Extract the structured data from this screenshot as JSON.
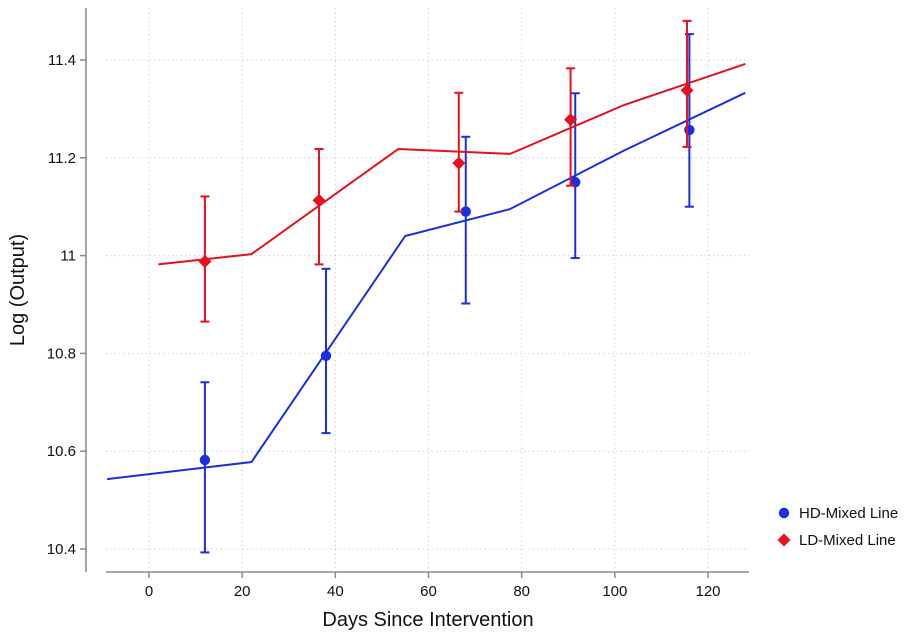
{
  "colors": {
    "HD": "#1a2fe0",
    "LD": "#e8101e",
    "grid": "#c8c8c8",
    "axis": "#8a8a8a"
  },
  "chart_data": {
    "type": "line",
    "title": "",
    "xlabel": "Days Since Intervention",
    "ylabel": "Log (Output)",
    "xlim": [
      -9,
      129
    ],
    "ylim": [
      10.4,
      11.4
    ],
    "xticks": [
      0,
      20,
      40,
      60,
      80,
      100,
      120
    ],
    "yticks": [
      10.4,
      10.6,
      10.8,
      11.0,
      11.2,
      11.4
    ],
    "xtick_labels": [
      "0",
      "20",
      "40",
      "60",
      "80",
      "100",
      "120"
    ],
    "ytick_labels": [
      "10.4",
      "10.6",
      "10.8",
      "11",
      "11.2",
      "11.4"
    ],
    "grid": true,
    "legend": {
      "position": "right-bottom",
      "entries": [
        "HD-Mixed Line",
        "LD-Mixed Line"
      ]
    },
    "series": [
      {
        "name": "HD-Mixed Line",
        "color": "#1a2fe0",
        "marker": "circle",
        "fit_line": {
          "x": [
            -9,
            22,
            55,
            77.5,
            102,
            128
          ],
          "y": [
            10.543,
            10.578,
            11.04,
            11.095,
            11.215,
            11.333
          ]
        },
        "points": [
          {
            "x": 12,
            "y": 10.582,
            "lo": 10.393,
            "hi": 10.741
          },
          {
            "x": 38,
            "y": 10.795,
            "lo": 10.637,
            "hi": 10.973
          },
          {
            "x": 68,
            "y": 11.09,
            "lo": 10.902,
            "hi": 11.243
          },
          {
            "x": 91.5,
            "y": 11.15,
            "lo": 10.995,
            "hi": 11.332
          },
          {
            "x": 116,
            "y": 11.257,
            "lo": 11.1,
            "hi": 11.453
          }
        ]
      },
      {
        "name": "LD-Mixed Line",
        "color": "#e8101e",
        "marker": "diamond",
        "fit_line": {
          "x": [
            2,
            22,
            53.5,
            77.5,
            102,
            128
          ],
          "y": [
            10.982,
            11.003,
            11.218,
            11.208,
            11.308,
            11.392
          ]
        },
        "points": [
          {
            "x": 12,
            "y": 10.988,
            "lo": 10.865,
            "hi": 11.121
          },
          {
            "x": 36.5,
            "y": 11.113,
            "lo": 10.982,
            "hi": 11.218
          },
          {
            "x": 66.5,
            "y": 11.189,
            "lo": 11.09,
            "hi": 11.333
          },
          {
            "x": 90.5,
            "y": 11.278,
            "lo": 11.143,
            "hi": 11.383
          },
          {
            "x": 115.5,
            "y": 11.338,
            "lo": 11.222,
            "hi": 11.48
          }
        ]
      }
    ]
  }
}
